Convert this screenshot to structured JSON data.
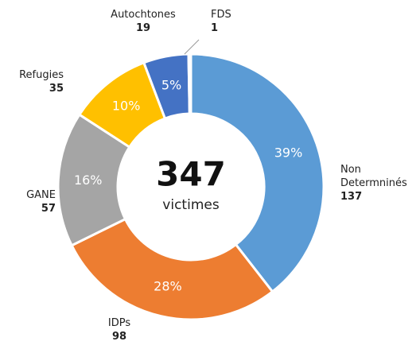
{
  "chart_data": {
    "type": "donut",
    "categories": [
      "Non Determninés",
      "IDPs",
      "GANE",
      "Refugies",
      "Autochtones",
      "FDS"
    ],
    "values": [
      137,
      98,
      57,
      35,
      19,
      1
    ],
    "percent_labels": [
      "39%",
      "28%",
      "16%",
      "10%",
      "5%",
      null
    ],
    "colors": [
      "#5b9bd5",
      "#ed7d31",
      "#a5a5a5",
      "#ffc000",
      "#4472c4",
      "#264478"
    ],
    "total": 347,
    "total_label": "victimes"
  }
}
